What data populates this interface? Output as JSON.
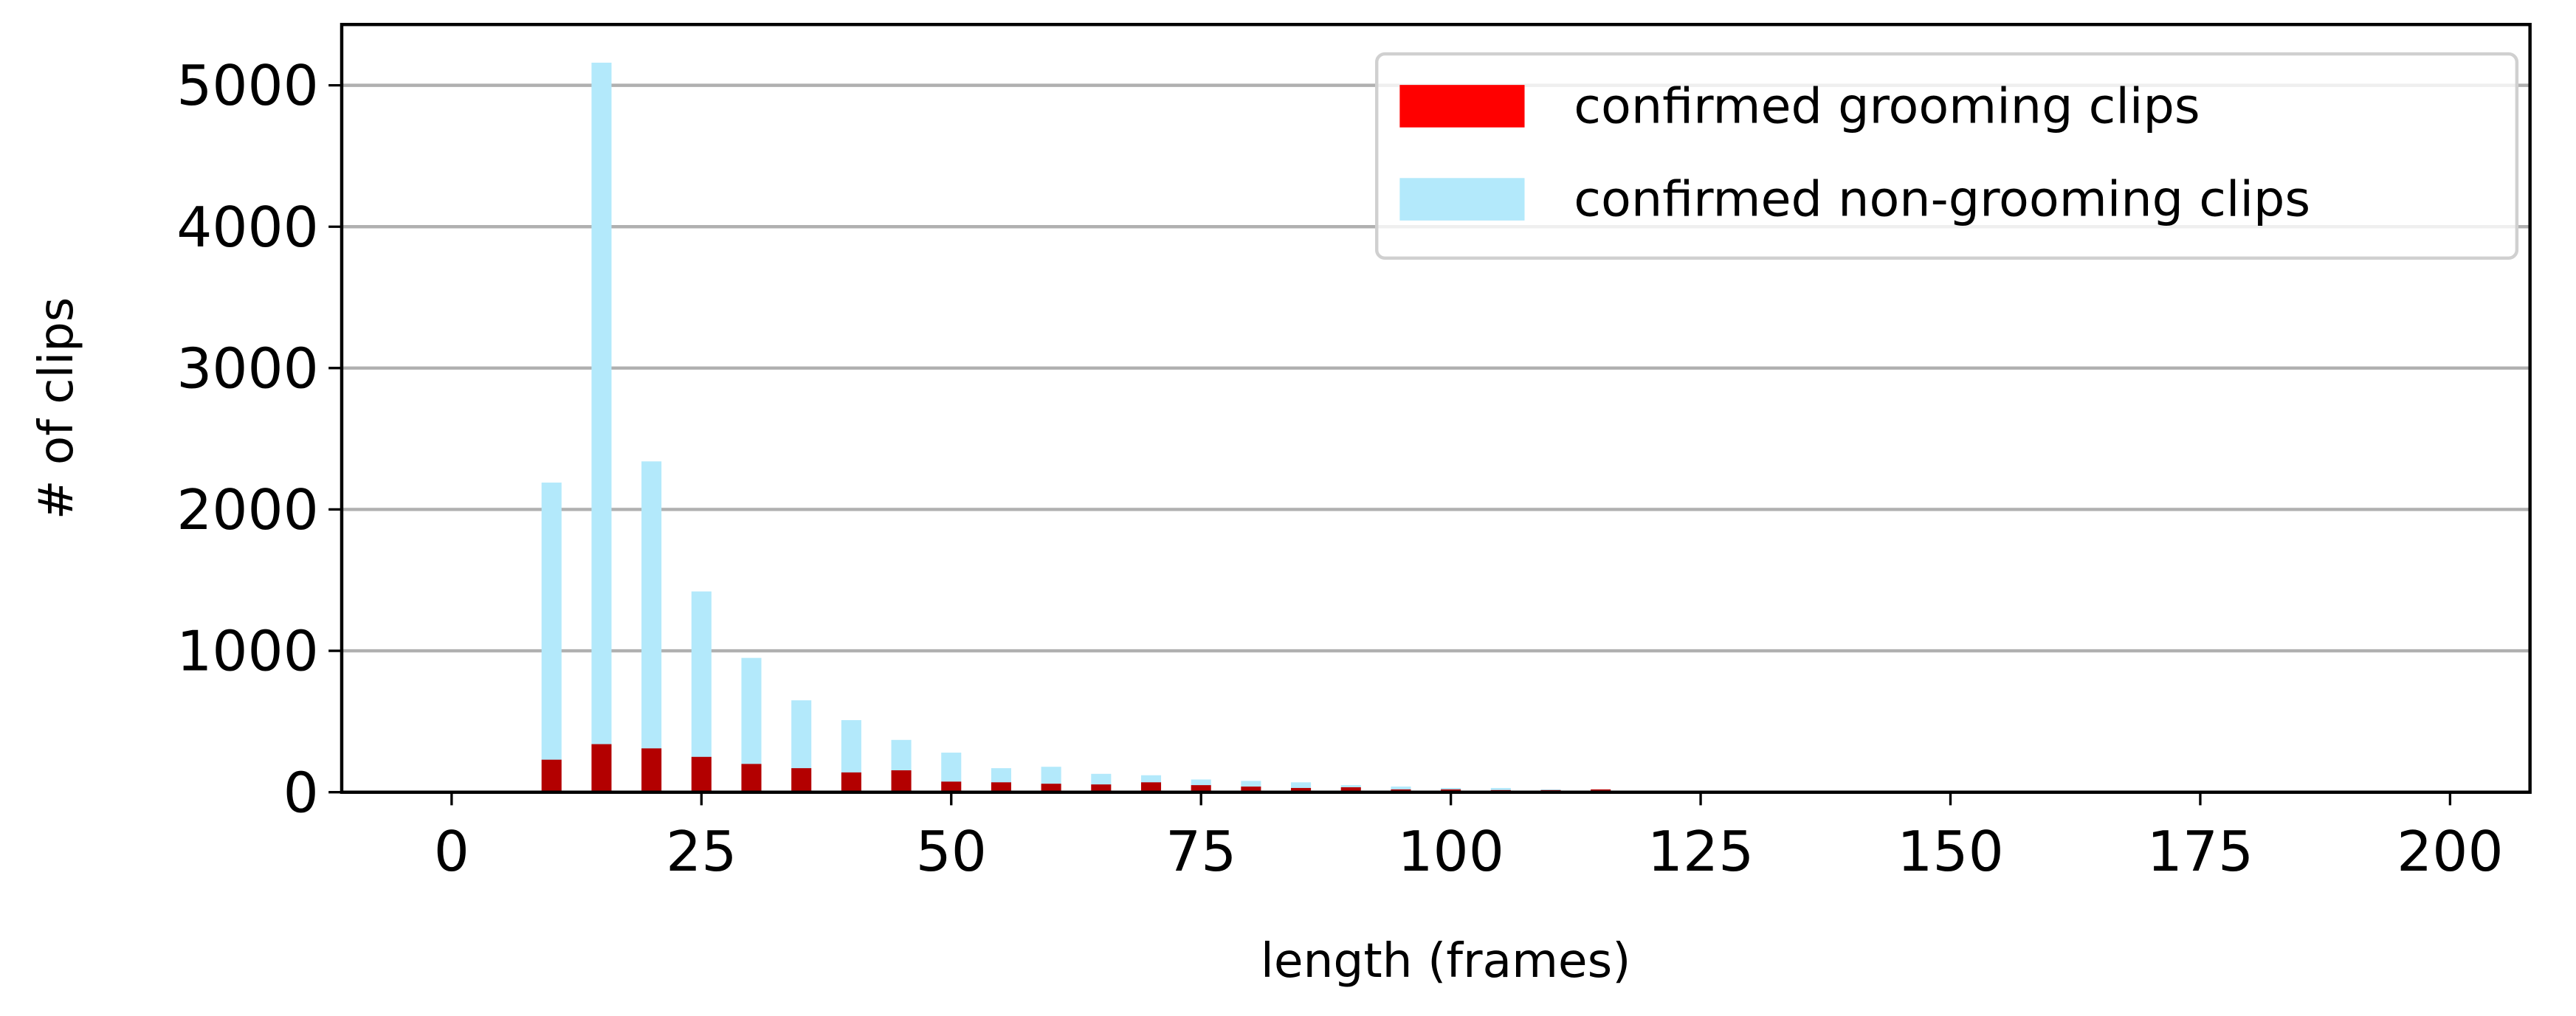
{
  "chart_data": {
    "type": "histogram",
    "xlabel": "length (frames)",
    "ylabel": "# of clips",
    "x": [
      10,
      15,
      20,
      25,
      30,
      35,
      40,
      45,
      50,
      55,
      60,
      65,
      70,
      75,
      80,
      85,
      90,
      95,
      100,
      105,
      110,
      115
    ],
    "series": [
      {
        "name": "confirmed non-grooming clips",
        "color": "#b3e9fb",
        "values": [
          2190,
          5160,
          2340,
          1420,
          950,
          650,
          510,
          370,
          280,
          170,
          180,
          130,
          120,
          90,
          80,
          70,
          50,
          40,
          30,
          30,
          20,
          20
        ]
      },
      {
        "name": "confirmed grooming clips",
        "color": "#ff0000",
        "values": [
          230,
          340,
          310,
          250,
          200,
          170,
          140,
          155,
          75,
          70,
          60,
          55,
          70,
          50,
          40,
          30,
          35,
          20,
          20,
          15,
          15,
          20
        ]
      }
    ],
    "legend_order": [
      1,
      0
    ],
    "legend": "upper right",
    "grid": true,
    "xlim": [
      -11,
      208
    ],
    "xticks": [
      0,
      25,
      50,
      75,
      100,
      125,
      150,
      175,
      200
    ],
    "ylim": [
      0,
      5430
    ],
    "yticks": [
      0,
      1000,
      2000,
      3000,
      4000,
      5000
    ]
  }
}
